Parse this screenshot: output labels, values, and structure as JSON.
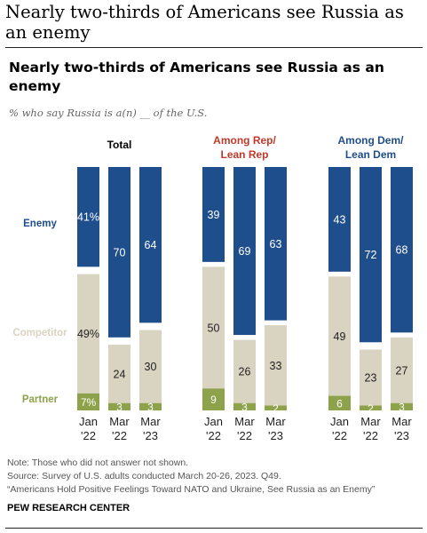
{
  "page_title": "Nearly two-thirds of Americans see Russia as an enemy",
  "chart_title": "Nearly two-thirds of Americans see Russia as an enemy",
  "subtitle": "% who say Russia is a(n) __ of the U.S.",
  "notes": {
    "note": "Note: Those who did not answer not shown.",
    "source": "Source: Survey of U.S. adults conducted March 20-26, 2023. Q49.",
    "report": "“Americans Hold Positive Feelings Toward NATO and Ukraine, See Russia as an Enemy”"
  },
  "brand": "PEW RESEARCH CENTER",
  "colors": {
    "Enemy": "#1f4e8c",
    "Competitor": "#d9d3c1",
    "Partner": "#8da24a",
    "rep_title": "#c0392b",
    "dem_title": "#1f4e8c"
  },
  "chart_data": {
    "type": "bar",
    "stacked": true,
    "ylim": [
      0,
      100
    ],
    "legend": "left",
    "categories": [
      {
        "line1": "Jan",
        "line2": "'22"
      },
      {
        "line1": "Mar",
        "line2": "'22"
      },
      {
        "line1": "Mar",
        "line2": "'23"
      }
    ],
    "series_names": [
      "Enemy",
      "Competitor",
      "Partner"
    ],
    "panels": [
      {
        "title_lines": [
          "Total"
        ],
        "title_color": "#000000",
        "Enemy": [
          41,
          70,
          64
        ],
        "Competitor": [
          49,
          24,
          30
        ],
        "Partner": [
          7,
          3,
          3
        ],
        "labels": {
          "Enemy": [
            "41%",
            "70",
            "64"
          ],
          "Competitor": [
            "49%",
            "24",
            "30"
          ],
          "Partner": [
            "7%",
            "3",
            "3"
          ]
        }
      },
      {
        "title_lines": [
          "Among Rep/",
          "Lean Rep"
        ],
        "title_color": "#c0392b",
        "Enemy": [
          39,
          69,
          63
        ],
        "Competitor": [
          50,
          26,
          33
        ],
        "Partner": [
          9,
          3,
          2
        ],
        "labels": {
          "Enemy": [
            "39",
            "69",
            "63"
          ],
          "Competitor": [
            "50",
            "26",
            "33"
          ],
          "Partner": [
            "9",
            "3",
            "2"
          ]
        }
      },
      {
        "title_lines": [
          "Among Dem/",
          "Lean Dem"
        ],
        "title_color": "#1f4e8c",
        "Enemy": [
          43,
          72,
          68
        ],
        "Competitor": [
          49,
          23,
          27
        ],
        "Partner": [
          6,
          2,
          3
        ],
        "labels": {
          "Enemy": [
            "43",
            "72",
            "68"
          ],
          "Competitor": [
            "49",
            "23",
            "27"
          ],
          "Partner": [
            "6",
            "2",
            "3"
          ]
        }
      }
    ]
  }
}
